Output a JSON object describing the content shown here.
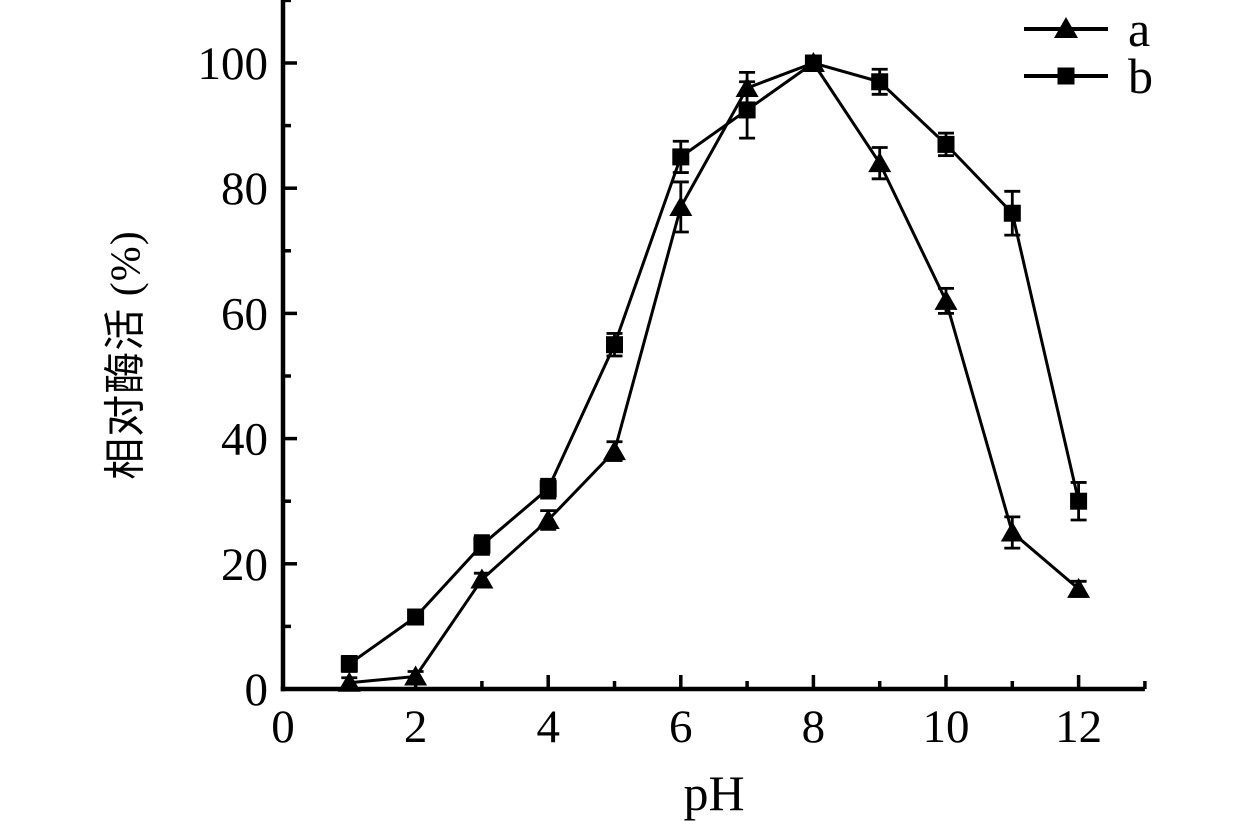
{
  "chart_data": {
    "type": "line",
    "title": "",
    "xlabel": "pH",
    "ylabel": "相对酶活 (%)",
    "x": [
      1,
      2,
      3,
      4,
      5,
      6,
      7,
      8,
      9,
      10,
      11,
      12
    ],
    "series": [
      {
        "name": "a",
        "marker": "triangle",
        "color": "#000000",
        "values": [
          1,
          2,
          17.5,
          27,
          38,
          77,
          96,
          100,
          84,
          62,
          25,
          16
        ],
        "errors": [
          0.8,
          0.8,
          1,
          1.5,
          1.5,
          4,
          2.5,
          1,
          2.5,
          2,
          2.5,
          1.2
        ]
      },
      {
        "name": "b",
        "marker": "square",
        "color": "#000000",
        "values": [
          4,
          11.5,
          23,
          32,
          55,
          85,
          92.5,
          100,
          97,
          87,
          76,
          30
        ],
        "errors": [
          1.2,
          0.8,
          1.5,
          1.5,
          1.8,
          2.5,
          4.5,
          1,
          2,
          1.8,
          3.5,
          3
        ]
      }
    ],
    "xlim": [
      0,
      13
    ],
    "ylim": [
      0,
      110
    ],
    "x_major_ticks": [
      0,
      2,
      4,
      6,
      8,
      10,
      12
    ],
    "x_minor_ticks": [
      1,
      3,
      5,
      7,
      9,
      11,
      13
    ],
    "y_major_ticks": [
      0,
      20,
      40,
      60,
      80,
      100
    ],
    "y_minor_ticks": [
      10,
      30,
      50,
      70,
      90,
      110
    ],
    "x_tick_labels": [
      "0",
      "2",
      "4",
      "6",
      "8",
      "10",
      "12"
    ],
    "y_tick_labels": [
      "0",
      "20",
      "40",
      "60",
      "80",
      "100"
    ],
    "legend": {
      "position": "top-right",
      "entries": [
        {
          "label": "a",
          "marker": "triangle"
        },
        {
          "label": "b",
          "marker": "square"
        }
      ]
    },
    "grid": false,
    "error_bars": true,
    "colors": {
      "foreground": "#000000",
      "background": "#ffffff"
    }
  }
}
